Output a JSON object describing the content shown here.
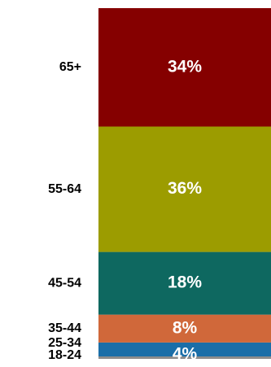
{
  "chart_data": {
    "type": "bar",
    "stacked": true,
    "orientation": "vertical",
    "categories": [
      "18-24",
      "25-34",
      "35-44",
      "45-54",
      "55-64",
      "65+"
    ],
    "values": [
      0,
      4,
      8,
      18,
      36,
      34
    ],
    "data_labels": [
      "",
      "4%",
      "8%",
      "18%",
      "36%",
      "34%"
    ],
    "colors": [
      "#8c8c8c",
      "#1a6ea8",
      "#d0683a",
      "#0e6860",
      "#9c9c00",
      "#850000"
    ],
    "title": "",
    "xlabel": "",
    "ylabel": "",
    "ylim": [
      0,
      100
    ],
    "grid": false,
    "legend": "none"
  }
}
